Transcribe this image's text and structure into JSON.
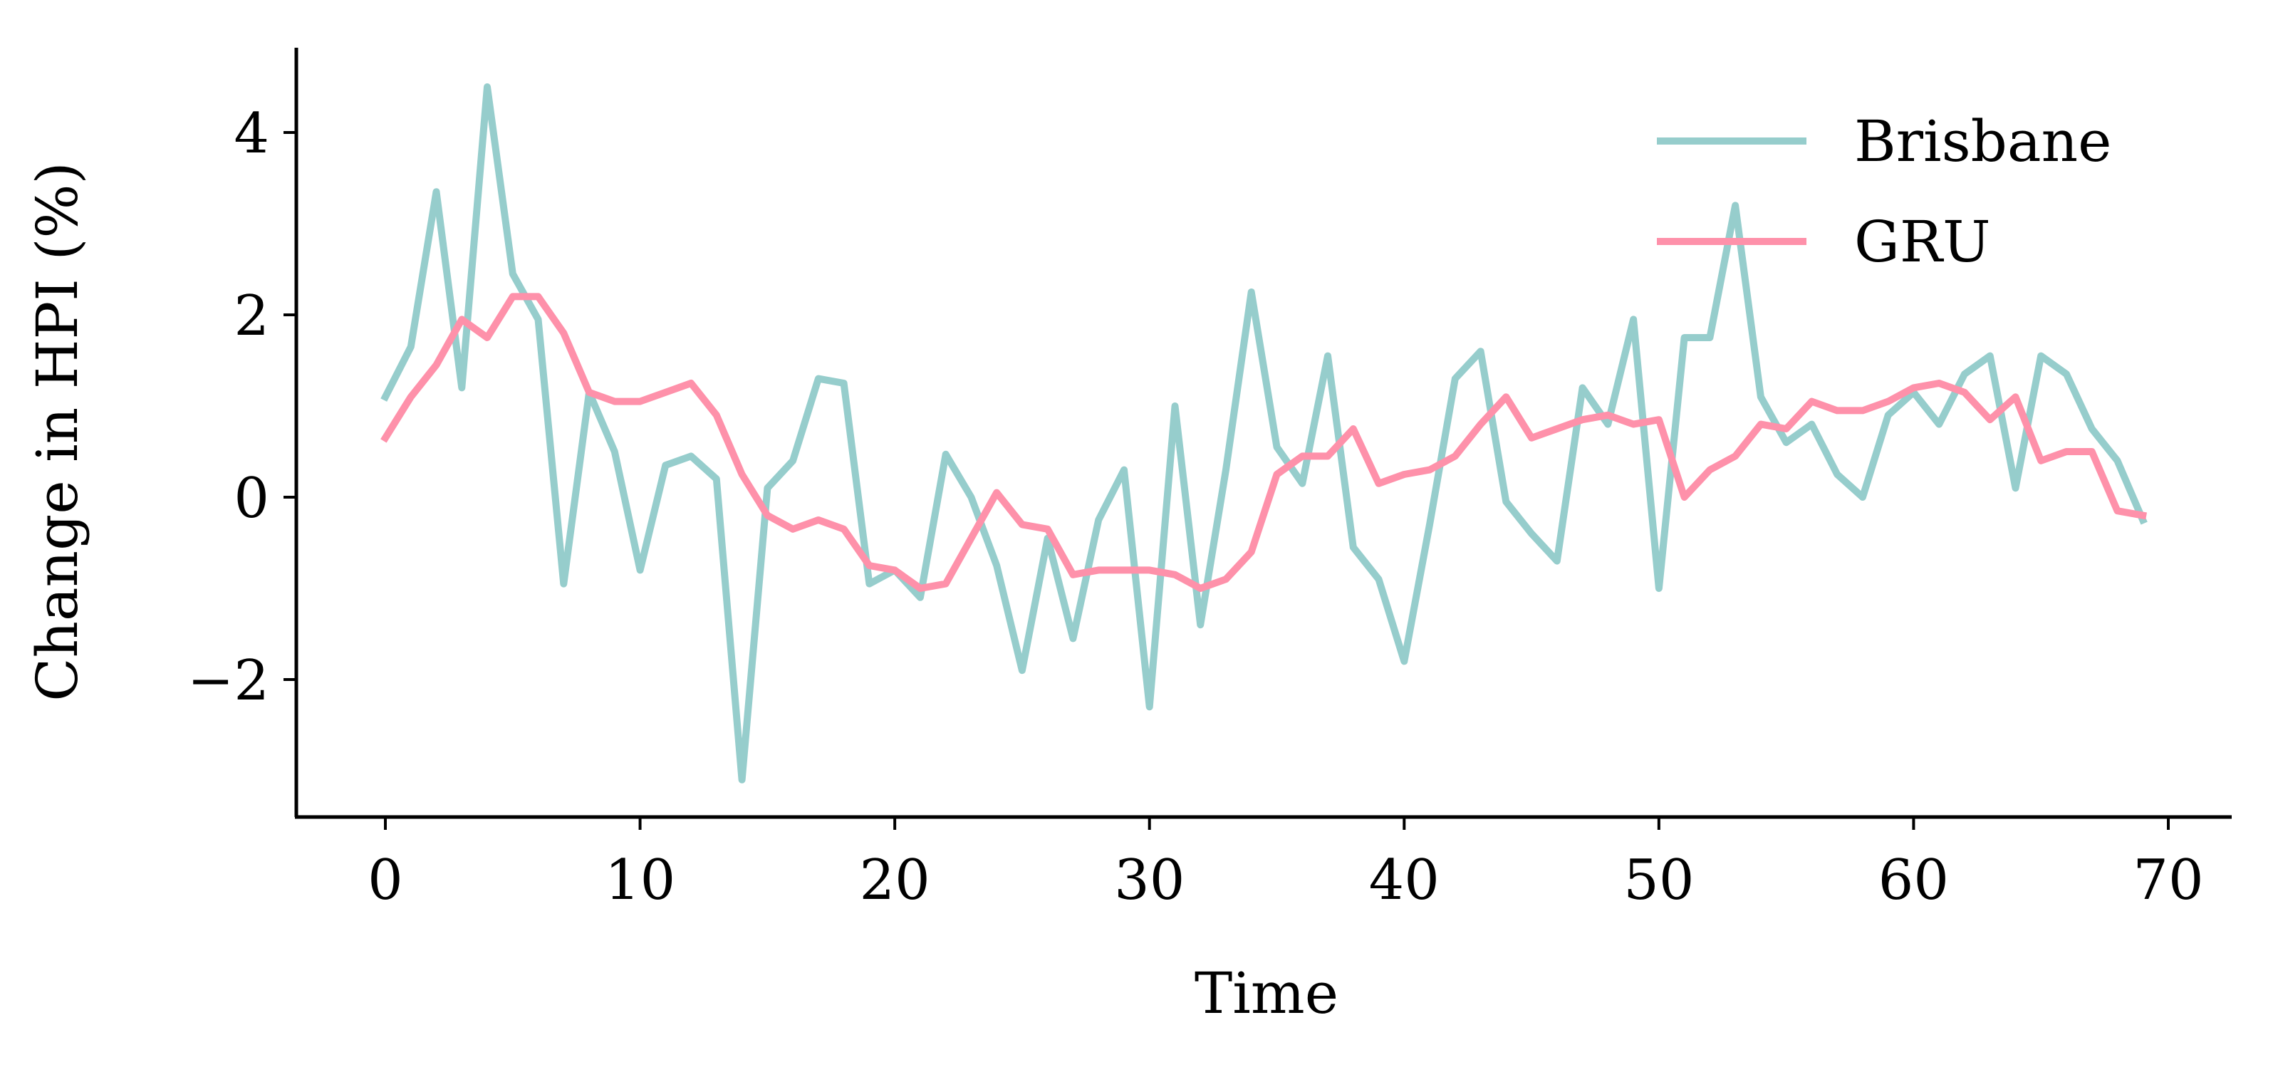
{
  "chart_data": {
    "type": "line",
    "title": "",
    "xlabel": "Time",
    "ylabel": "Change in HPI (%)",
    "xlim": [
      -3.5,
      72.5
    ],
    "ylim": [
      -3.5,
      4.95
    ],
    "xticks": [
      0,
      10,
      20,
      30,
      40,
      50,
      60,
      70
    ],
    "xtick_labels": [
      "0",
      "10",
      "20",
      "30",
      "40",
      "50",
      "60",
      "70"
    ],
    "yticks": [
      -2,
      0,
      2,
      4
    ],
    "ytick_labels": [
      "−2",
      "0",
      "2",
      "4"
    ],
    "grid": false,
    "legend_position": "top-right",
    "series": [
      {
        "name": "Brisbane",
        "color": "#96cdcc",
        "values": [
          1.1,
          1.65,
          3.35,
          1.2,
          4.5,
          2.45,
          1.95,
          -0.95,
          1.15,
          0.5,
          -0.8,
          0.35,
          0.45,
          0.2,
          -3.1,
          0.1,
          0.4,
          1.3,
          1.25,
          -0.95,
          -0.8,
          -1.1,
          0.47,
          0.0,
          -0.75,
          -1.9,
          -0.45,
          -1.55,
          -0.25,
          0.3,
          -2.3,
          1.0,
          -1.4,
          0.3,
          2.25,
          0.55,
          0.15,
          1.55,
          -0.55,
          -0.9,
          -1.8,
          -0.3,
          1.3,
          1.6,
          -0.05,
          -0.4,
          -0.7,
          1.2,
          0.8,
          1.95,
          -1.0,
          1.75,
          1.75,
          3.2,
          1.1,
          0.6,
          0.8,
          0.25,
          0.0,
          0.9,
          1.15,
          0.8,
          1.35,
          1.55,
          0.1,
          1.55,
          1.35,
          0.75,
          0.4,
          -0.25
        ]
      },
      {
        "name": "GRU",
        "color": "#fe91aa",
        "values": [
          0.65,
          1.1,
          1.45,
          1.95,
          1.75,
          2.2,
          2.2,
          1.8,
          1.15,
          1.05,
          1.05,
          1.15,
          1.25,
          0.9,
          0.25,
          -0.2,
          -0.35,
          -0.25,
          -0.35,
          -0.75,
          -0.8,
          -1.0,
          -0.95,
          -0.45,
          0.05,
          -0.3,
          -0.35,
          -0.85,
          -0.8,
          -0.8,
          -0.8,
          -0.85,
          -1.0,
          -0.9,
          -0.6,
          0.25,
          0.45,
          0.45,
          0.75,
          0.15,
          0.25,
          0.3,
          0.45,
          0.8,
          1.1,
          0.65,
          0.75,
          0.85,
          0.9,
          0.8,
          0.85,
          0.0,
          0.3,
          0.45,
          0.8,
          0.75,
          1.05,
          0.95,
          0.95,
          1.05,
          1.2,
          1.25,
          1.15,
          0.85,
          1.1,
          0.4,
          0.5,
          0.5,
          -0.15,
          -0.2
        ]
      }
    ]
  }
}
